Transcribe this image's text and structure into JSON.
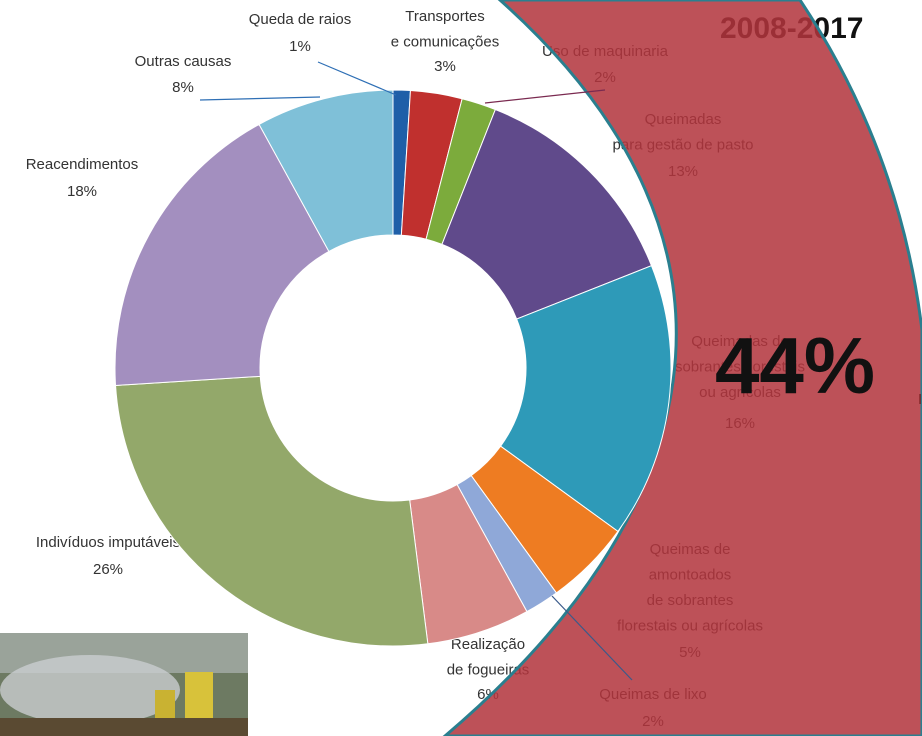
{
  "chart_data": {
    "type": "donut",
    "title": "2008-2017",
    "center_label": "44%",
    "annotation": "In",
    "categories": [
      "Queda de raios",
      "Transportes\ne comunicações",
      "Uso de maquinaria",
      "Queimadas\npara gestão de pasto",
      "Queimadas de\nsobrantes florestais\nou agrícolas",
      "Queimas de\namontoados\nde  sobrantes\nflorestais ou agrícolas",
      "Queimas de lixo",
      "Realização\nde fogueiras",
      "Indivíduos  imputáveis",
      "Reacendimentos",
      "Outras causas"
    ],
    "values": [
      1,
      3,
      2,
      13,
      16,
      5,
      2,
      6,
      26,
      18,
      8
    ],
    "value_labels": [
      "1%",
      "3%",
      "2%",
      "13%",
      "16%",
      "5%",
      "2%",
      "6%",
      "26%",
      "18%",
      "8%"
    ],
    "colors": [
      "#1f5fa8",
      "#c0302e",
      "#7cab3c",
      "#604a8b",
      "#2e9ab8",
      "#ee7c22",
      "#8fa8d8",
      "#d88a88",
      "#93a86a",
      "#a38fbf",
      "#7fc0d8"
    ]
  }
}
